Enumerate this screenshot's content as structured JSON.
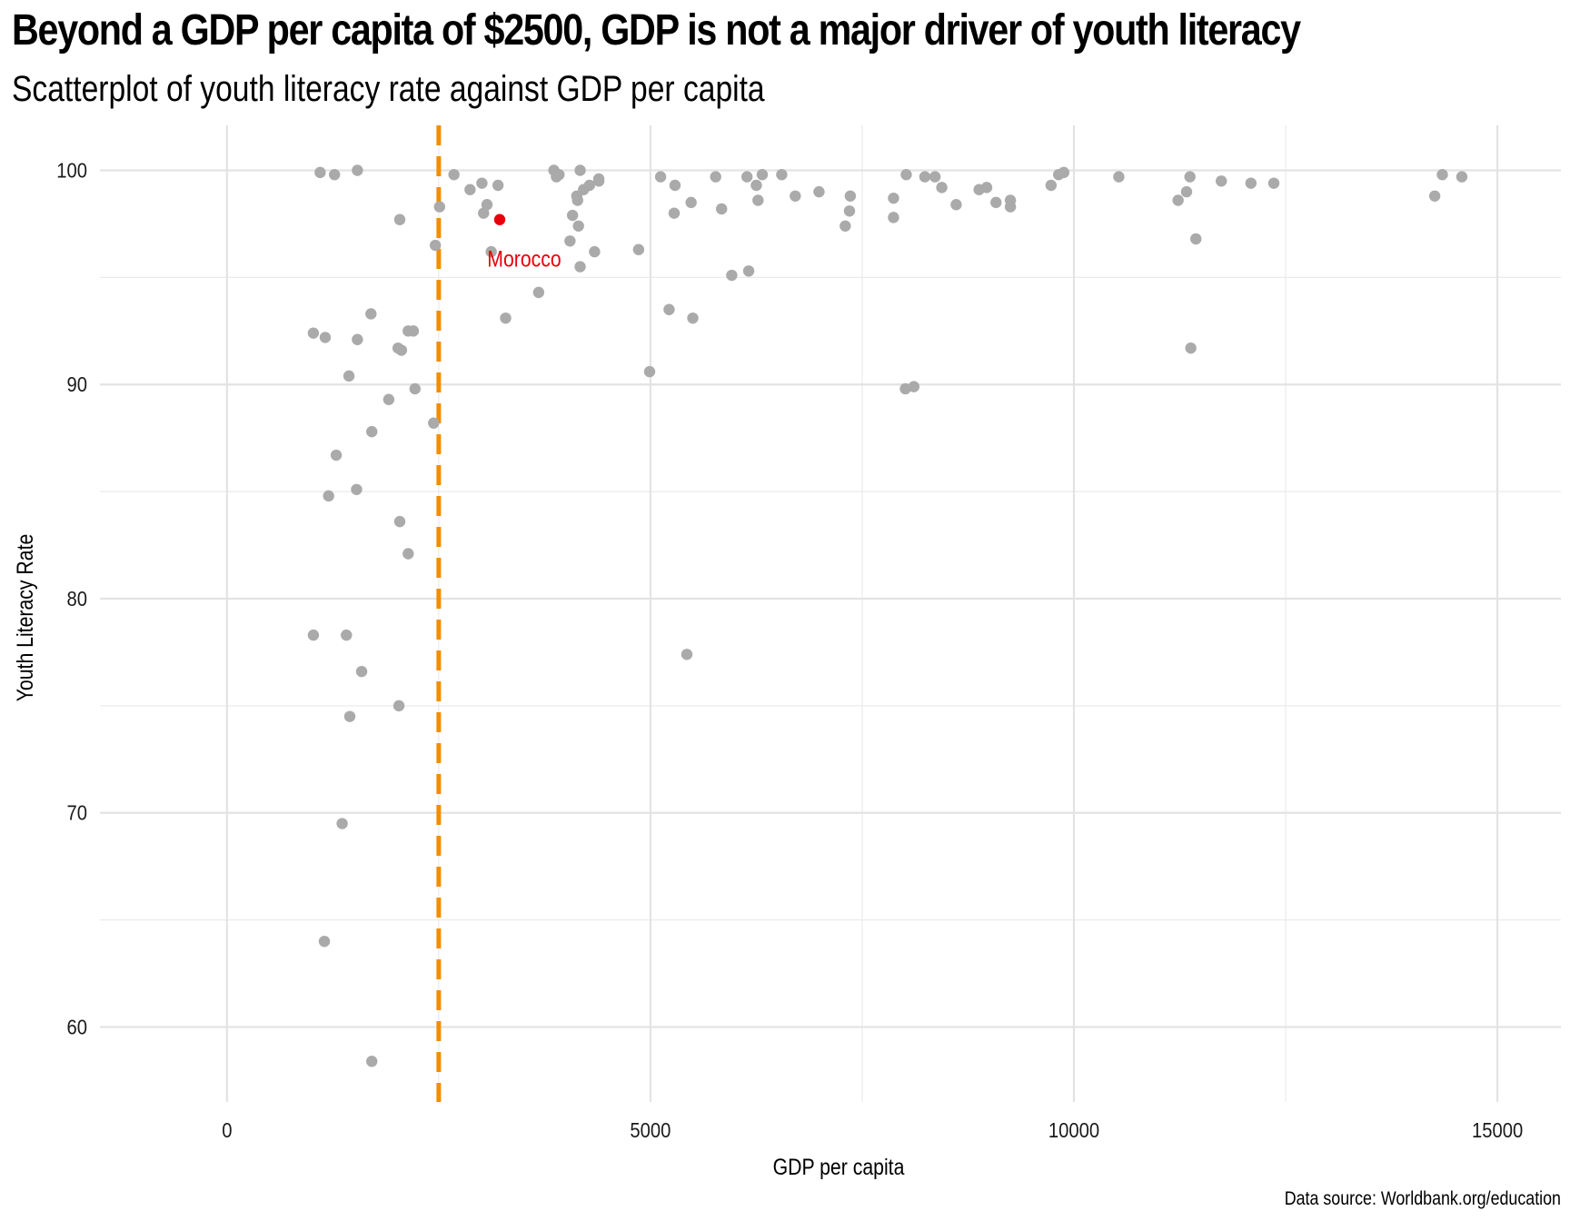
{
  "chart_data": {
    "type": "scatter",
    "title": "Beyond a GDP per capita of $2500, GDP is not a major driver of youth literacy",
    "subtitle": "Scatterplot of youth literacy rate against GDP per capita",
    "xlabel": "GDP per capita",
    "ylabel": "Youth Literacy Rate",
    "caption": "Data source: Worldbank.org/education",
    "xlim": [
      -1500,
      15750
    ],
    "ylim": [
      56.5,
      102.1
    ],
    "x_ticks": [
      0,
      5000,
      10000,
      15000
    ],
    "y_ticks": [
      60,
      70,
      80,
      90,
      100
    ],
    "grid": true,
    "point_color": "#aaaaaa",
    "highlight_color": "#e8000b",
    "reference_line": {
      "x": 2500,
      "color": "#f28e00",
      "style": "dashed"
    },
    "highlight": {
      "label": "Morocco",
      "x": 3220,
      "y": 97.7
    },
    "points": [
      [
        1100,
        99.9
      ],
      [
        1270,
        99.8
      ],
      [
        1540,
        100.0
      ],
      [
        2040,
        97.7
      ],
      [
        2510,
        98.3
      ],
      [
        2460,
        96.5
      ],
      [
        2680,
        99.8
      ],
      [
        2870,
        99.1
      ],
      [
        3030,
        98.0
      ],
      [
        3070,
        98.4
      ],
      [
        3120,
        96.2
      ],
      [
        3010,
        99.4
      ],
      [
        3200,
        99.3
      ],
      [
        3680,
        94.3
      ],
      [
        3290,
        93.1
      ],
      [
        3860,
        100.0
      ],
      [
        3920,
        99.8
      ],
      [
        3890,
        99.7
      ],
      [
        4050,
        96.7
      ],
      [
        4080,
        97.9
      ],
      [
        4130,
        98.8
      ],
      [
        4140,
        98.6
      ],
      [
        4150,
        97.4
      ],
      [
        4170,
        100.0
      ],
      [
        4170,
        95.5
      ],
      [
        4210,
        99.1
      ],
      [
        4280,
        99.3
      ],
      [
        4340,
        96.2
      ],
      [
        4390,
        99.6
      ],
      [
        4390,
        99.5
      ],
      [
        1020,
        92.4
      ],
      [
        1160,
        92.2
      ],
      [
        1540,
        92.1
      ],
      [
        1700,
        93.3
      ],
      [
        2020,
        91.7
      ],
      [
        2060,
        91.6
      ],
      [
        2140,
        92.5
      ],
      [
        2200,
        92.5
      ],
      [
        1440,
        90.4
      ],
      [
        2220,
        89.8
      ],
      [
        1910,
        89.3
      ],
      [
        2440,
        88.2
      ],
      [
        1710,
        87.8
      ],
      [
        1290,
        86.7
      ],
      [
        1200,
        84.8
      ],
      [
        1530,
        85.1
      ],
      [
        2040,
        83.6
      ],
      [
        2140,
        82.1
      ],
      [
        1020,
        78.3
      ],
      [
        1410,
        78.3
      ],
      [
        1590,
        76.6
      ],
      [
        1450,
        74.5
      ],
      [
        2030,
        75.0
      ],
      [
        1360,
        69.5
      ],
      [
        1150,
        64.0
      ],
      [
        1710,
        58.4
      ],
      [
        4860,
        96.3
      ],
      [
        4990,
        90.6
      ],
      [
        5120,
        99.7
      ],
      [
        5220,
        93.5
      ],
      [
        5290,
        99.3
      ],
      [
        5280,
        98.0
      ],
      [
        5480,
        98.5
      ],
      [
        5500,
        93.1
      ],
      [
        5430,
        77.4
      ],
      [
        5770,
        99.7
      ],
      [
        5840,
        98.2
      ],
      [
        5960,
        95.1
      ],
      [
        6140,
        99.7
      ],
      [
        6160,
        95.3
      ],
      [
        6250,
        99.3
      ],
      [
        6270,
        98.6
      ],
      [
        6320,
        99.8
      ],
      [
        6550,
        99.8
      ],
      [
        6710,
        98.8
      ],
      [
        6990,
        99.0
      ],
      [
        7300,
        97.4
      ],
      [
        7350,
        98.1
      ],
      [
        7360,
        98.8
      ],
      [
        7870,
        98.7
      ],
      [
        7870,
        97.8
      ],
      [
        8020,
        99.8
      ],
      [
        8010,
        89.8
      ],
      [
        8110,
        89.9
      ],
      [
        8240,
        99.7
      ],
      [
        8360,
        99.7
      ],
      [
        8440,
        99.2
      ],
      [
        8610,
        98.4
      ],
      [
        8880,
        99.1
      ],
      [
        8970,
        99.2
      ],
      [
        9080,
        98.5
      ],
      [
        9250,
        98.6
      ],
      [
        9250,
        98.3
      ],
      [
        9730,
        99.3
      ],
      [
        9820,
        99.8
      ],
      [
        9880,
        99.9
      ],
      [
        10530,
        99.7
      ],
      [
        11230,
        98.6
      ],
      [
        11330,
        99.0
      ],
      [
        11370,
        99.7
      ],
      [
        11380,
        91.7
      ],
      [
        11440,
        96.8
      ],
      [
        11740,
        99.5
      ],
      [
        12090,
        99.4
      ],
      [
        12360,
        99.4
      ],
      [
        14260,
        98.8
      ],
      [
        14350,
        99.8
      ],
      [
        14580,
        99.7
      ]
    ]
  }
}
